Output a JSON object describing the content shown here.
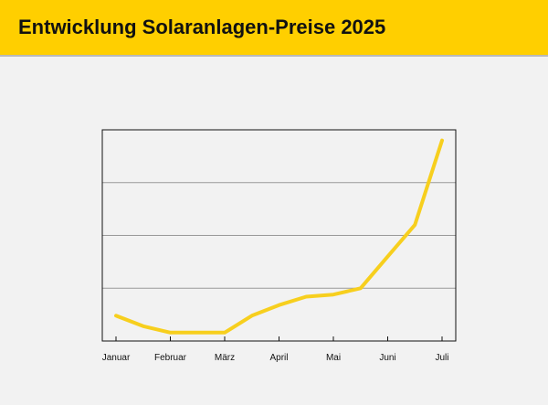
{
  "header": {
    "title": "Entwicklung Solaranlagen-Preise 2025"
  },
  "colors": {
    "accent": "#ffcf00",
    "line": "#f7cf1e",
    "background": "#f2f2f2",
    "header_border": "#b9b9b9"
  },
  "chart_data": {
    "type": "line",
    "categories": [
      "Januar",
      "Februar",
      "März",
      "April",
      "Mai",
      "Juni",
      "Juli"
    ],
    "x": [
      0,
      0.5,
      1,
      1.5,
      2,
      2.5,
      3,
      3.5,
      4,
      4.5,
      5,
      5.5,
      6
    ],
    "series": [
      {
        "values": [
          0.12,
          0.07,
          0.04,
          0.04,
          0.04,
          0.12,
          0.17,
          0.21,
          0.22,
          0.25,
          0.4,
          0.55,
          0.95
        ]
      }
    ],
    "ylim": [
      0,
      1
    ],
    "grid": true,
    "legend": "none",
    "xlabel": "",
    "ylabel": ""
  }
}
